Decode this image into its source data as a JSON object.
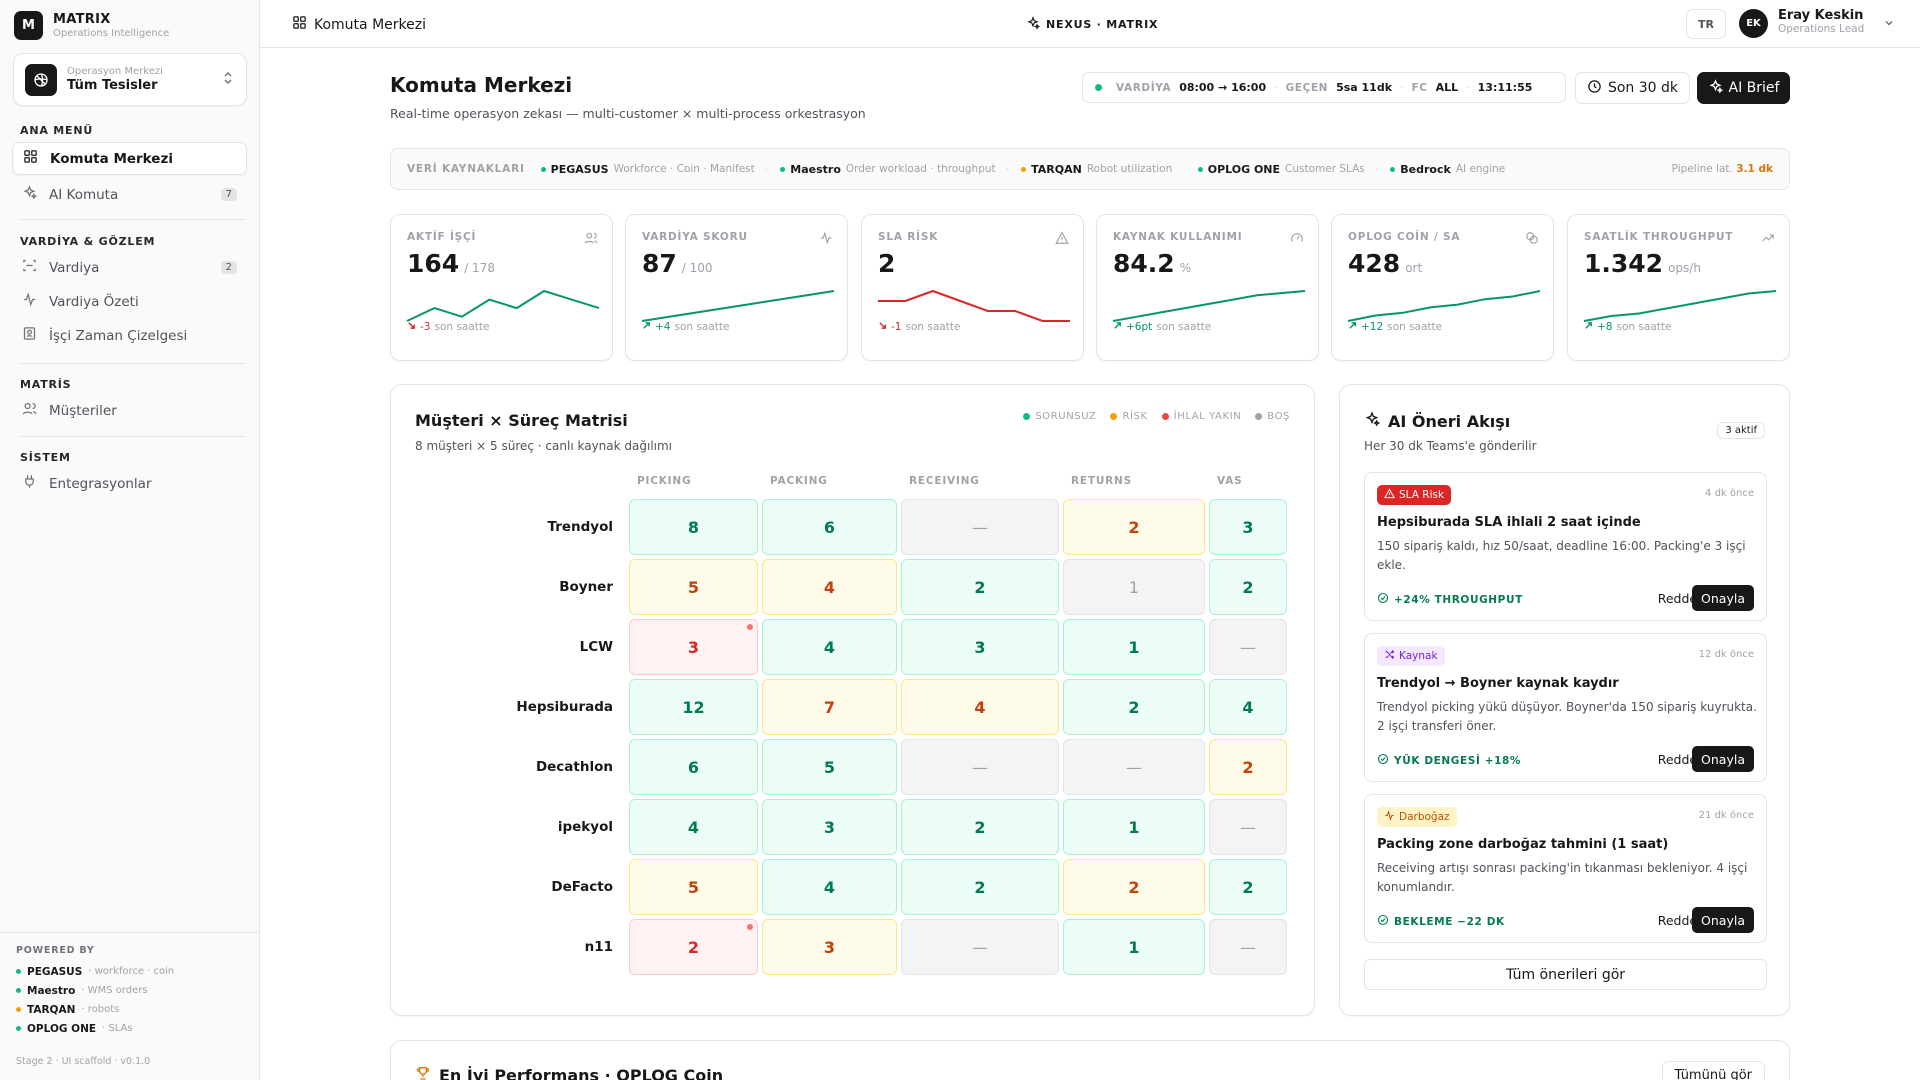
{
  "brand": {
    "logo": "M",
    "name": "MATRIX",
    "subtitle": "Operations Intelligence"
  },
  "facility": {
    "label": "Operasyon Merkezi",
    "value": "Tüm Tesisler"
  },
  "sidebar": {
    "sections": [
      {
        "title": "ANA MENÜ"
      },
      {
        "title": "VARDİYA & GÖZLEM"
      },
      {
        "title": "MATRİS"
      },
      {
        "title": "SİSTEM"
      }
    ],
    "items": [
      {
        "label": "Komuta Merkezi",
        "icon": "grid-icon"
      },
      {
        "label": "AI Komuta",
        "icon": "sparkles-icon",
        "count": "7"
      },
      {
        "label": "Vardiya",
        "icon": "scan-icon",
        "count": "2"
      },
      {
        "label": "Vardiya Özeti",
        "icon": "activity-icon"
      },
      {
        "label": "İşçi Zaman Çizelgesi",
        "icon": "badge-icon"
      },
      {
        "label": "Müşteriler",
        "icon": "users-icon"
      },
      {
        "label": "Entegrasyonlar",
        "icon": "plug-icon"
      }
    ],
    "powered": {
      "title": "POWERED BY",
      "rows": [
        {
          "name": "PEGASUS",
          "desc": "· workforce · coin",
          "color": "#10b981"
        },
        {
          "name": "Maestro",
          "desc": "· WMS orders",
          "color": "#10b981"
        },
        {
          "name": "TARQAN",
          "desc": "· robots",
          "color": "#f59e0b"
        },
        {
          "name": "OPLOG ONE",
          "desc": "· SLAs",
          "color": "#10b981"
        }
      ]
    },
    "stage": "Stage 2 · UI scaffold · v0.1.0"
  },
  "topbar": {
    "crumb": "Komuta Merkezi",
    "center": "NEXUS · MATRIX",
    "lang": "TR",
    "user": {
      "initials": "EK",
      "name": "Eray Keskin",
      "role": "Operations Lead"
    }
  },
  "header": {
    "title": "Komuta Merkezi",
    "subtitle": "Real-time operasyon zekası — multi-customer × multi-process orkestrasyon",
    "shift": {
      "k1": "VARDİYA",
      "v1": "08:00 → 16:00",
      "k2": "GEÇEN",
      "v2": "5sa 11dk",
      "k3": "FC",
      "v3": "ALL",
      "time": "13:11:55"
    },
    "range_btn": "Son 30 dk",
    "brief_btn": "AI Brief"
  },
  "sources": {
    "label": "VERİ KAYNAKLARI",
    "items": [
      {
        "name": "PEGASUS",
        "desc": "Workforce · Coin · Manifest",
        "color": "#10b981"
      },
      {
        "name": "Maestro",
        "desc": "Order workload · throughput",
        "color": "#10b981"
      },
      {
        "name": "TARQAN",
        "desc": "Robot utilization",
        "color": "#f59e0b"
      },
      {
        "name": "OPLOG ONE",
        "desc": "Customer SLAs",
        "color": "#10b981"
      },
      {
        "name": "Bedrock",
        "desc": "AI engine",
        "color": "#10b981"
      }
    ],
    "latency_label": "Pipeline lat.",
    "latency_value": "3.1 dk"
  },
  "kpis": [
    {
      "label": "AKTİF İŞÇİ",
      "value": "164",
      "suffix": "/ 178",
      "delta": "-3",
      "delta_text": "son saatte",
      "trend": "down",
      "color": "#059669",
      "delta_color": "#dc2626",
      "icon": "users-icon",
      "spark": [
        3,
        6,
        4,
        8,
        6,
        10,
        8,
        6
      ]
    },
    {
      "label": "VARDİYA SKORU",
      "value": "87",
      "suffix": "/ 100",
      "delta": "+4",
      "delta_text": "son saatte",
      "trend": "up",
      "color": "#059669",
      "delta_color": "#059669",
      "icon": "activity-icon",
      "spark": [
        1,
        2,
        3,
        4,
        5,
        6,
        7,
        8,
        9
      ]
    },
    {
      "label": "SLA RİSK",
      "value": "2",
      "suffix": "",
      "delta": "-1",
      "delta_text": "son saatte",
      "trend": "down",
      "color": "#dc2626",
      "delta_color": "#dc2626",
      "icon": "alert-icon",
      "spark": [
        7,
        7,
        9,
        7,
        5,
        5,
        3,
        3
      ]
    },
    {
      "label": "KAYNAK KULLANIMI",
      "value": "84.2",
      "suffix": "%",
      "delta": "+6pt",
      "delta_text": "son saatte",
      "trend": "up",
      "color": "#059669",
      "delta_color": "#059669",
      "icon": "gauge-icon",
      "spark": [
        1,
        2,
        3,
        4,
        5,
        6,
        7,
        7.5,
        8
      ]
    },
    {
      "label": "OPLOG COİN / SA",
      "value": "428",
      "suffix": "ort",
      "delta": "+12",
      "delta_text": "son saatte",
      "trend": "up",
      "color": "#059669",
      "delta_color": "#059669",
      "icon": "coins-icon",
      "spark": [
        1,
        2,
        2.5,
        3.5,
        4,
        5,
        5.5,
        6.5
      ]
    },
    {
      "label": "SAATLİK THROUGHPUT",
      "value": "1.342",
      "suffix": "ops/h",
      "delta": "+8",
      "delta_text": "son saatte",
      "trend": "up",
      "color": "#059669",
      "delta_color": "#059669",
      "icon": "trending-up-icon",
      "spark": [
        1,
        2,
        2.5,
        3.5,
        4.5,
        5.5,
        6.5,
        7
      ]
    }
  ],
  "matrix": {
    "title": "Müşteri × Süreç Matrisi",
    "subtitle": "8 müşteri × 5 süreç · canlı kaynak dağılımı",
    "legend": [
      {
        "label": "SORUNSUZ",
        "color": "#10b981"
      },
      {
        "label": "RİSK",
        "color": "#f59e0b"
      },
      {
        "label": "İHLAL YAKIN",
        "color": "#ef4444"
      },
      {
        "label": "BOŞ",
        "color": "#a1a1aa"
      }
    ],
    "columns": [
      "PICKING",
      "PACKING",
      "RECEIVING",
      "RETURNS",
      "VAS"
    ],
    "rows": [
      {
        "name": "Trendyol",
        "cells": [
          {
            "v": "8",
            "s": "ok"
          },
          {
            "v": "6",
            "s": "ok"
          },
          {
            "v": "—",
            "s": "empty"
          },
          {
            "v": "2",
            "s": "risk"
          },
          {
            "v": "3",
            "s": "ok"
          }
        ]
      },
      {
        "name": "Boyner",
        "cells": [
          {
            "v": "5",
            "s": "risk"
          },
          {
            "v": "4",
            "s": "risk"
          },
          {
            "v": "2",
            "s": "ok"
          },
          {
            "v": "1",
            "s": "empty"
          },
          {
            "v": "2",
            "s": "ok"
          }
        ]
      },
      {
        "name": "LCW",
        "cells": [
          {
            "v": "3",
            "s": "breach",
            "alert": true
          },
          {
            "v": "4",
            "s": "ok"
          },
          {
            "v": "3",
            "s": "ok"
          },
          {
            "v": "1",
            "s": "ok"
          },
          {
            "v": "—",
            "s": "empty"
          }
        ]
      },
      {
        "name": "Hepsiburada",
        "cells": [
          {
            "v": "12",
            "s": "ok"
          },
          {
            "v": "7",
            "s": "risk"
          },
          {
            "v": "4",
            "s": "risk"
          },
          {
            "v": "2",
            "s": "ok"
          },
          {
            "v": "4",
            "s": "ok"
          }
        ]
      },
      {
        "name": "Decathlon",
        "cells": [
          {
            "v": "6",
            "s": "ok"
          },
          {
            "v": "5",
            "s": "ok"
          },
          {
            "v": "—",
            "s": "empty"
          },
          {
            "v": "—",
            "s": "empty"
          },
          {
            "v": "2",
            "s": "risk"
          }
        ]
      },
      {
        "name": "ipekyol",
        "cells": [
          {
            "v": "4",
            "s": "ok"
          },
          {
            "v": "3",
            "s": "ok"
          },
          {
            "v": "2",
            "s": "ok"
          },
          {
            "v": "1",
            "s": "ok"
          },
          {
            "v": "—",
            "s": "empty"
          }
        ]
      },
      {
        "name": "DeFacto",
        "cells": [
          {
            "v": "5",
            "s": "risk"
          },
          {
            "v": "4",
            "s": "ok"
          },
          {
            "v": "2",
            "s": "ok"
          },
          {
            "v": "2",
            "s": "risk"
          },
          {
            "v": "2",
            "s": "ok"
          }
        ]
      },
      {
        "name": "n11",
        "cells": [
          {
            "v": "2",
            "s": "breach",
            "alert": true
          },
          {
            "v": "3",
            "s": "risk"
          },
          {
            "v": "—",
            "s": "empty"
          },
          {
            "v": "1",
            "s": "ok"
          },
          {
            "v": "—",
            "s": "empty"
          }
        ]
      }
    ]
  },
  "ai": {
    "title": "AI Öneri Akışı",
    "subtitle": "Her 30 dk Teams'e gönderilir",
    "badge": "3 aktif",
    "suggestions": [
      {
        "tag": "SLA Risk",
        "tag_icon": "alert-triangle-icon",
        "tag_style": "red",
        "time": "4 dk önce",
        "title": "Hepsiburada SLA ihlali 2 saat içinde",
        "body": "150 sipariş kaldı, hız 50/saat, deadline 16:00. Packing'e 3 işçi ekle.",
        "metric": "+24% THROUGHPUT",
        "reject": "Reddet",
        "approve": "Onayla"
      },
      {
        "tag": "Kaynak",
        "tag_icon": "shuffle-icon",
        "tag_style": "purple",
        "time": "12 dk önce",
        "title": "Trendyol → Boyner kaynak kaydır",
        "body": "Trendyol picking yükü düşüyor. Boyner'da 150 sipariş kuyrukta. 2 işçi transferi öner.",
        "metric": "YÜK DENGESİ +18%",
        "reject": "Reddet",
        "approve": "Onayla"
      },
      {
        "tag": "Darboğaz",
        "tag_icon": "activity-icon",
        "tag_style": "amber",
        "time": "21 dk önce",
        "title": "Packing zone darboğaz tahmini (1 saat)",
        "body": "Receiving artışı sonrası packing'in tıkanması bekleniyor. 4 işçi konumlandır.",
        "metric": "BEKLEME −22 DK",
        "reject": "Reddet",
        "approve": "Onayla"
      }
    ],
    "all_btn": "Tüm önerileri gör"
  },
  "perf": {
    "title": "En İyi Performans · OPLOG Coin",
    "btn": "Tümünü gör"
  }
}
